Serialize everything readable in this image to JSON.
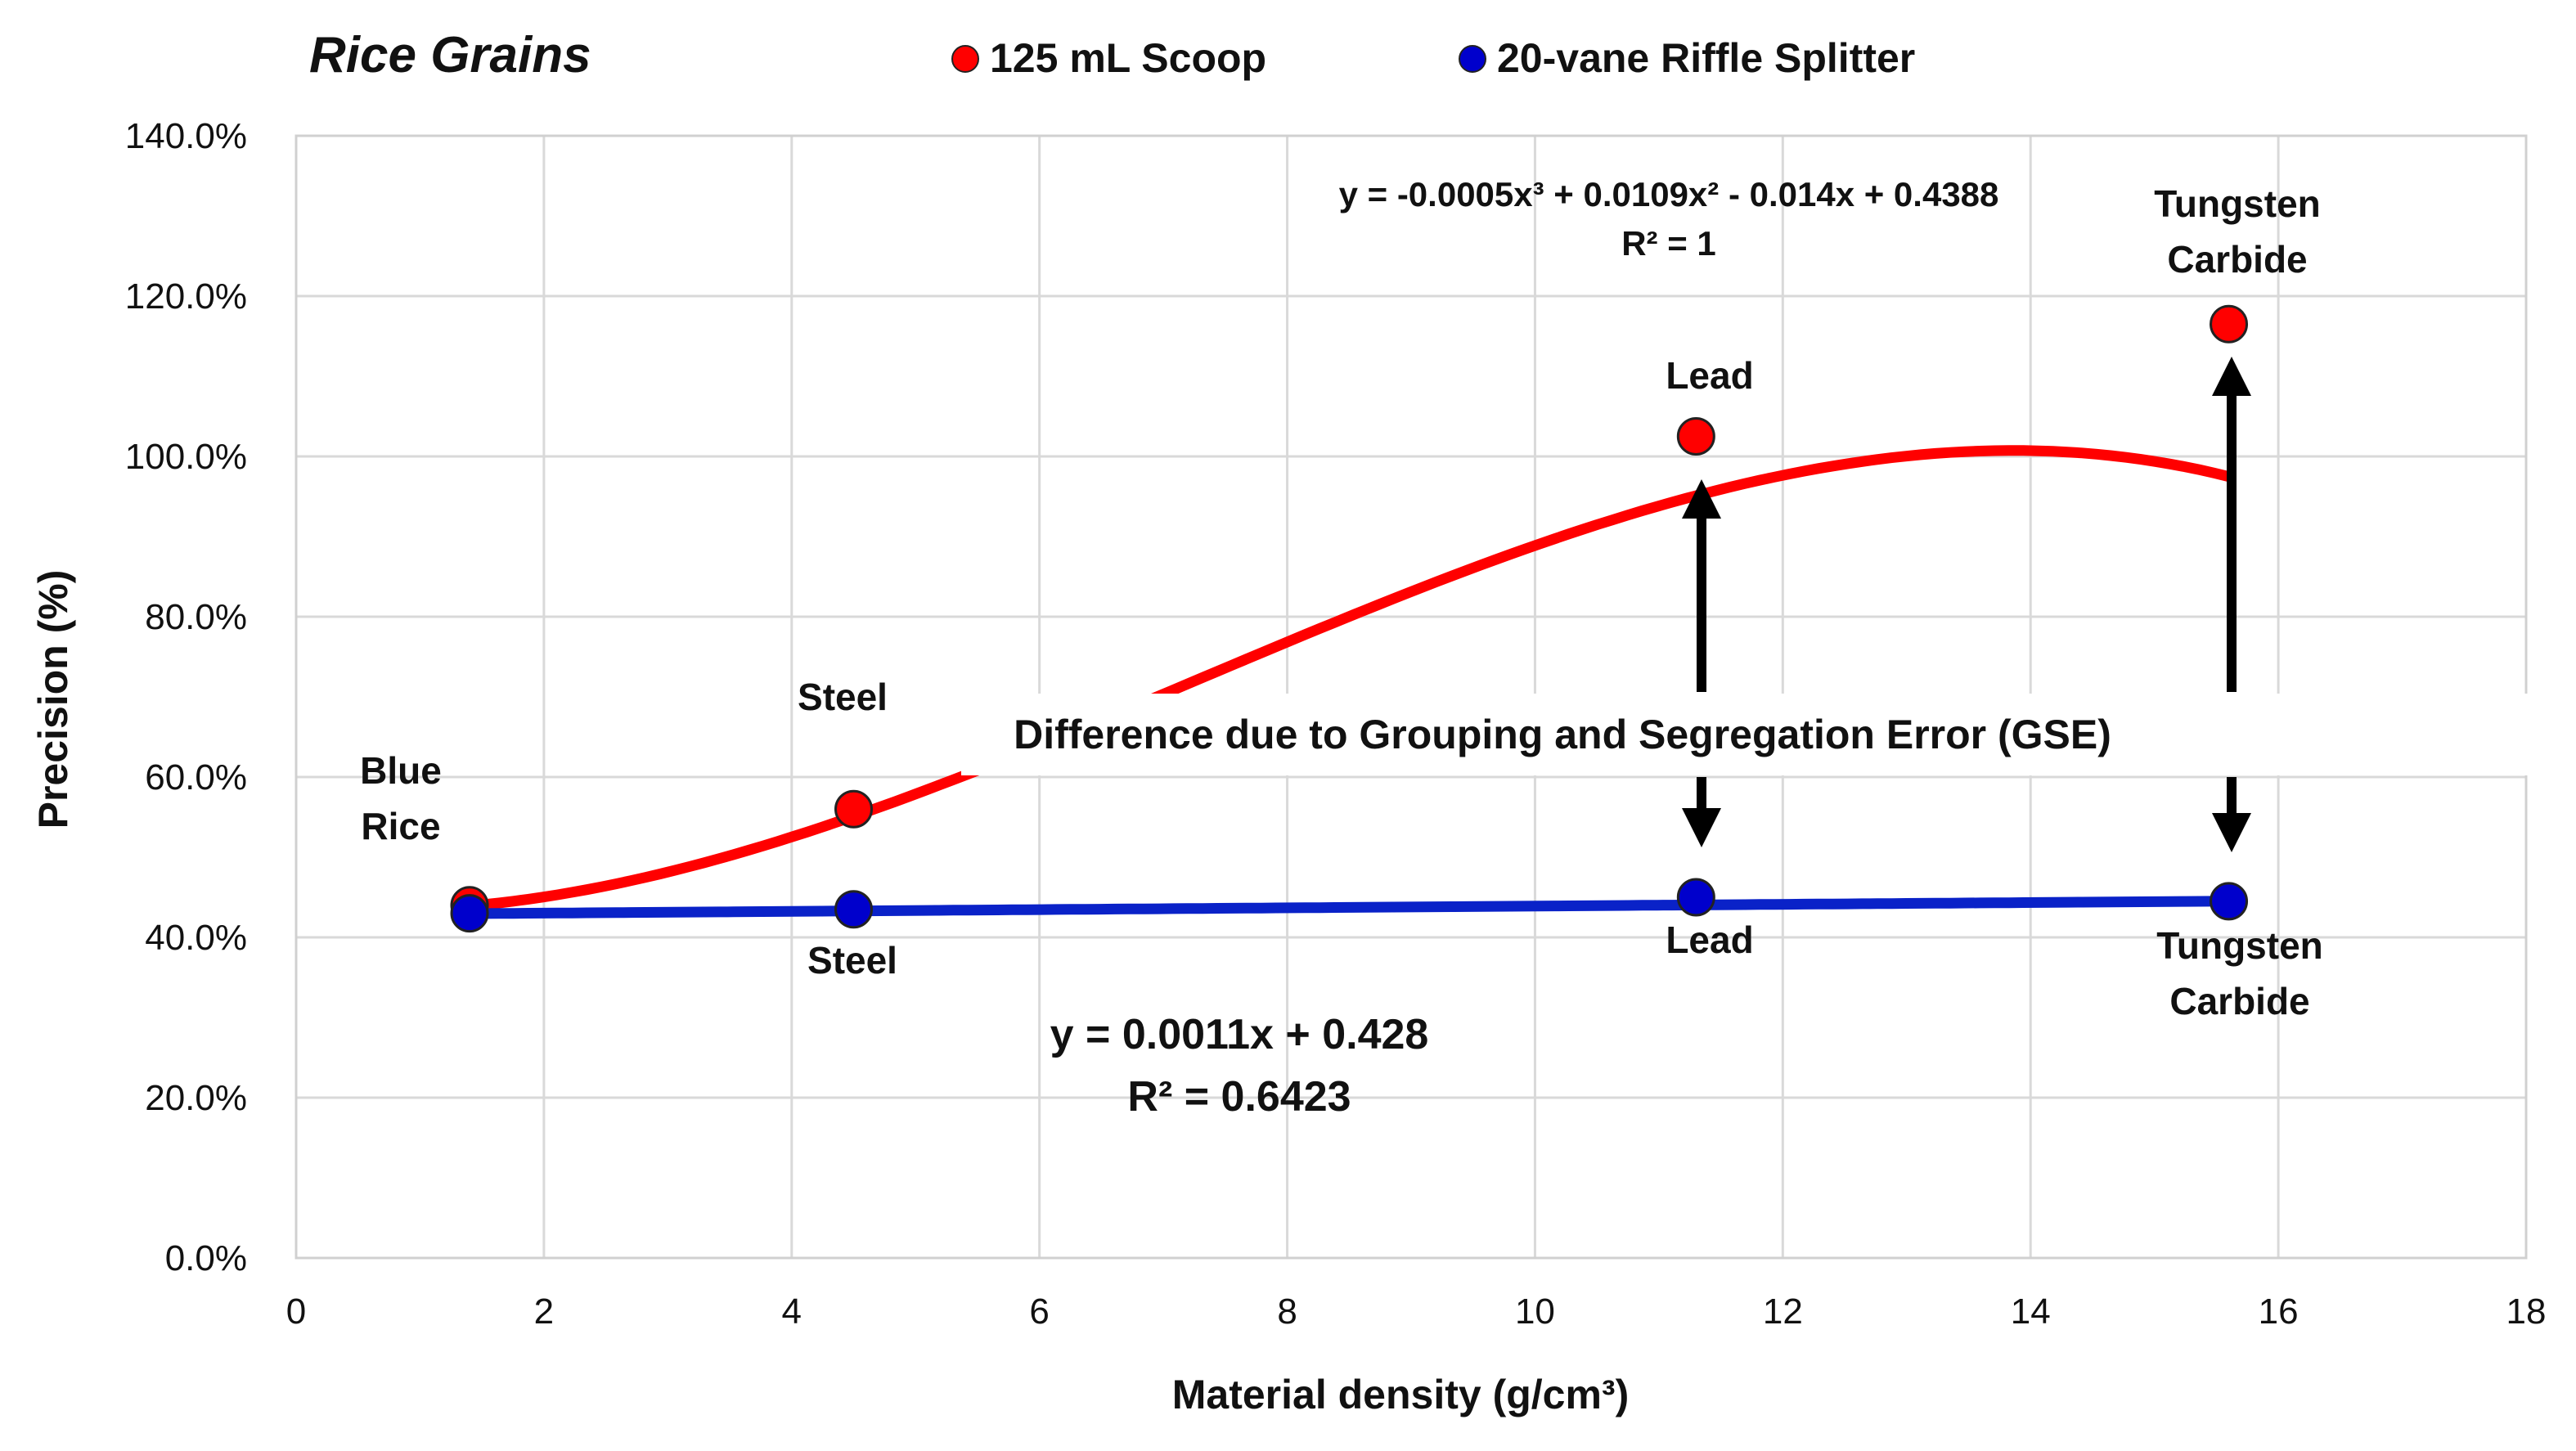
{
  "chart_data": {
    "type": "scatter",
    "title": "Rice Grains",
    "xlabel": "Material density (g/cm³)",
    "ylabel": "Precision (%)",
    "xlim": [
      0,
      18
    ],
    "ylim": [
      0,
      1.4
    ],
    "x_ticks": [
      "0",
      "2",
      "4",
      "6",
      "8",
      "10",
      "12",
      "14",
      "16",
      "18"
    ],
    "y_ticks": [
      "0.0%",
      "20.0%",
      "40.0%",
      "60.0%",
      "80.0%",
      "100.0%",
      "120.0%",
      "140.0%"
    ],
    "grid": true,
    "legend_position": "top",
    "series": [
      {
        "name": "125 mL Scoop",
        "color": "#ff0000",
        "x": [
          1.4,
          4.5,
          11.3,
          15.6
        ],
        "y": [
          0.44,
          0.56,
          1.025,
          1.165
        ],
        "trendline": {
          "type": "polynomial-3",
          "coefficients": [
            -0.0005,
            0.0109,
            -0.014,
            0.4388
          ],
          "equation": "y = -0.0005x³ + 0.0109x² - 0.014x + 0.4388",
          "r2": "R² = 1"
        }
      },
      {
        "name": "20-vane Riffle Splitter",
        "color": "#0000cc",
        "x": [
          1.4,
          4.5,
          11.3,
          15.6
        ],
        "y": [
          0.43,
          0.435,
          0.45,
          0.445
        ],
        "trendline": {
          "type": "linear",
          "coefficients": [
            0.0011,
            0.428
          ],
          "equation": "y = 0.0011x + 0.428",
          "r2": "R² = 0.6423"
        }
      }
    ],
    "point_labels": {
      "scoop": [
        "Blue Rice",
        "Steel",
        "Lead",
        "Tungsten Carbide"
      ],
      "riffle": [
        "Steel",
        "Lead",
        "Tungsten Carbide"
      ]
    },
    "annotation": "Difference due to Grouping and Segregation Error (GSE)"
  }
}
